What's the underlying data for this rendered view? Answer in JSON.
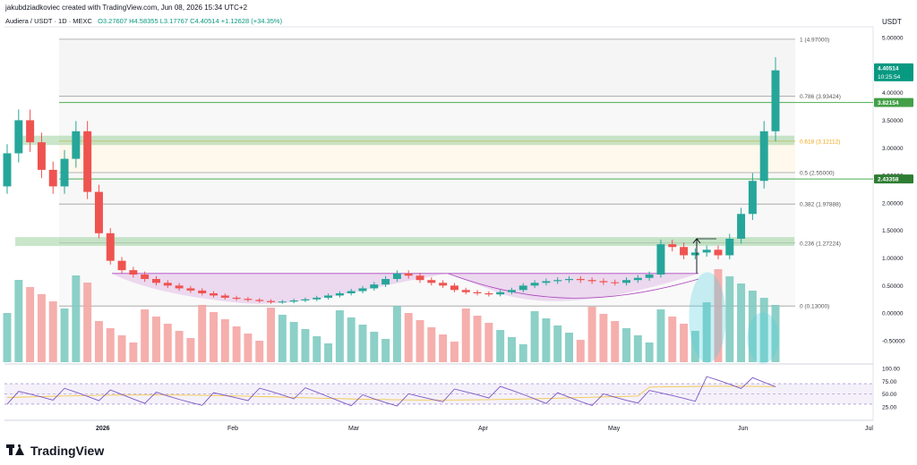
{
  "header": {
    "credit": "jakubdziadkoviec created with TradingView.com, Jun 08, 2026 15:34 UTC+2",
    "symbol": "Audiera / USDT · 1D · MEXC",
    "ohlc": "O3.27607 H4.58355 L3.17767 C4.40514 +1.12628 (+34.35%)",
    "price_axis_unit": "USDT"
  },
  "brand": {
    "name": "TradingView"
  },
  "colors": {
    "up": "#26a69a",
    "down": "#ef5350",
    "volume_up": "#7fcbc1",
    "volume_down": "#f4a6a4",
    "fib_line": "#9e9e9e",
    "fib_618": "#f2a30f",
    "green_zone": "#a5d6a7",
    "level_line": "#4caf50",
    "cup_fill": "#e1bee7",
    "cup_stroke": "#ab47bc",
    "rsi": "#7e57c2",
    "rsi_ma": "#f2c94c",
    "ellipse": "#4dd0e1"
  },
  "chart_data": {
    "type": "candlestick",
    "price_axis": {
      "unit": "USDT",
      "min": -0.5,
      "max": 5.0,
      "ticks": [
        "5.00000",
        "4.50000",
        "4.00000",
        "3.50000",
        "3.00000",
        "2.50000",
        "2.00000",
        "1.50000",
        "1.00000",
        "0.50000",
        "0.00000",
        "-0.50000"
      ]
    },
    "x_axis": {
      "labels": [
        "2026",
        "Feb",
        "Mar",
        "Apr",
        "May",
        "Jun",
        "Jul"
      ]
    },
    "last_price": {
      "value": "4.40514",
      "countdown": "10:25:54"
    },
    "marked_level_label": "3.82154",
    "support_level_label": "2.43358",
    "fib_levels": [
      {
        "label": "1 (4.97000)",
        "value": 4.97
      },
      {
        "label": "0.786 (3.93424)",
        "value": 3.93424
      },
      {
        "label": "0.618 (3.12112)",
        "value": 3.12112
      },
      {
        "label": "0.5 (2.55000)",
        "value": 2.55
      },
      {
        "label": "0.382 (1.97888)",
        "value": 1.97888
      },
      {
        "label": "0.236 (1.27224)",
        "value": 1.27224
      },
      {
        "label": "0 (0.13000)",
        "value": 0.13
      }
    ],
    "rsi": {
      "ticks": [
        "100.00",
        "75.00",
        "50.00",
        "25.00"
      ]
    },
    "series_closes": [
      2.9,
      3.5,
      3.1,
      2.6,
      2.3,
      2.8,
      3.3,
      2.2,
      1.45,
      0.95,
      0.78,
      0.7,
      0.62,
      0.55,
      0.5,
      0.45,
      0.41,
      0.36,
      0.32,
      0.28,
      0.26,
      0.24,
      0.22,
      0.2,
      0.21,
      0.23,
      0.25,
      0.28,
      0.32,
      0.36,
      0.4,
      0.45,
      0.52,
      0.62,
      0.72,
      0.68,
      0.6,
      0.55,
      0.5,
      0.42,
      0.38,
      0.36,
      0.34,
      0.38,
      0.42,
      0.5,
      0.55,
      0.58,
      0.6,
      0.62,
      0.6,
      0.58,
      0.56,
      0.55,
      0.6,
      0.64,
      0.7,
      1.25,
      1.2,
      1.05,
      1.1,
      1.15,
      1.05,
      1.35,
      1.8,
      2.4,
      3.3,
      4.40514
    ]
  }
}
